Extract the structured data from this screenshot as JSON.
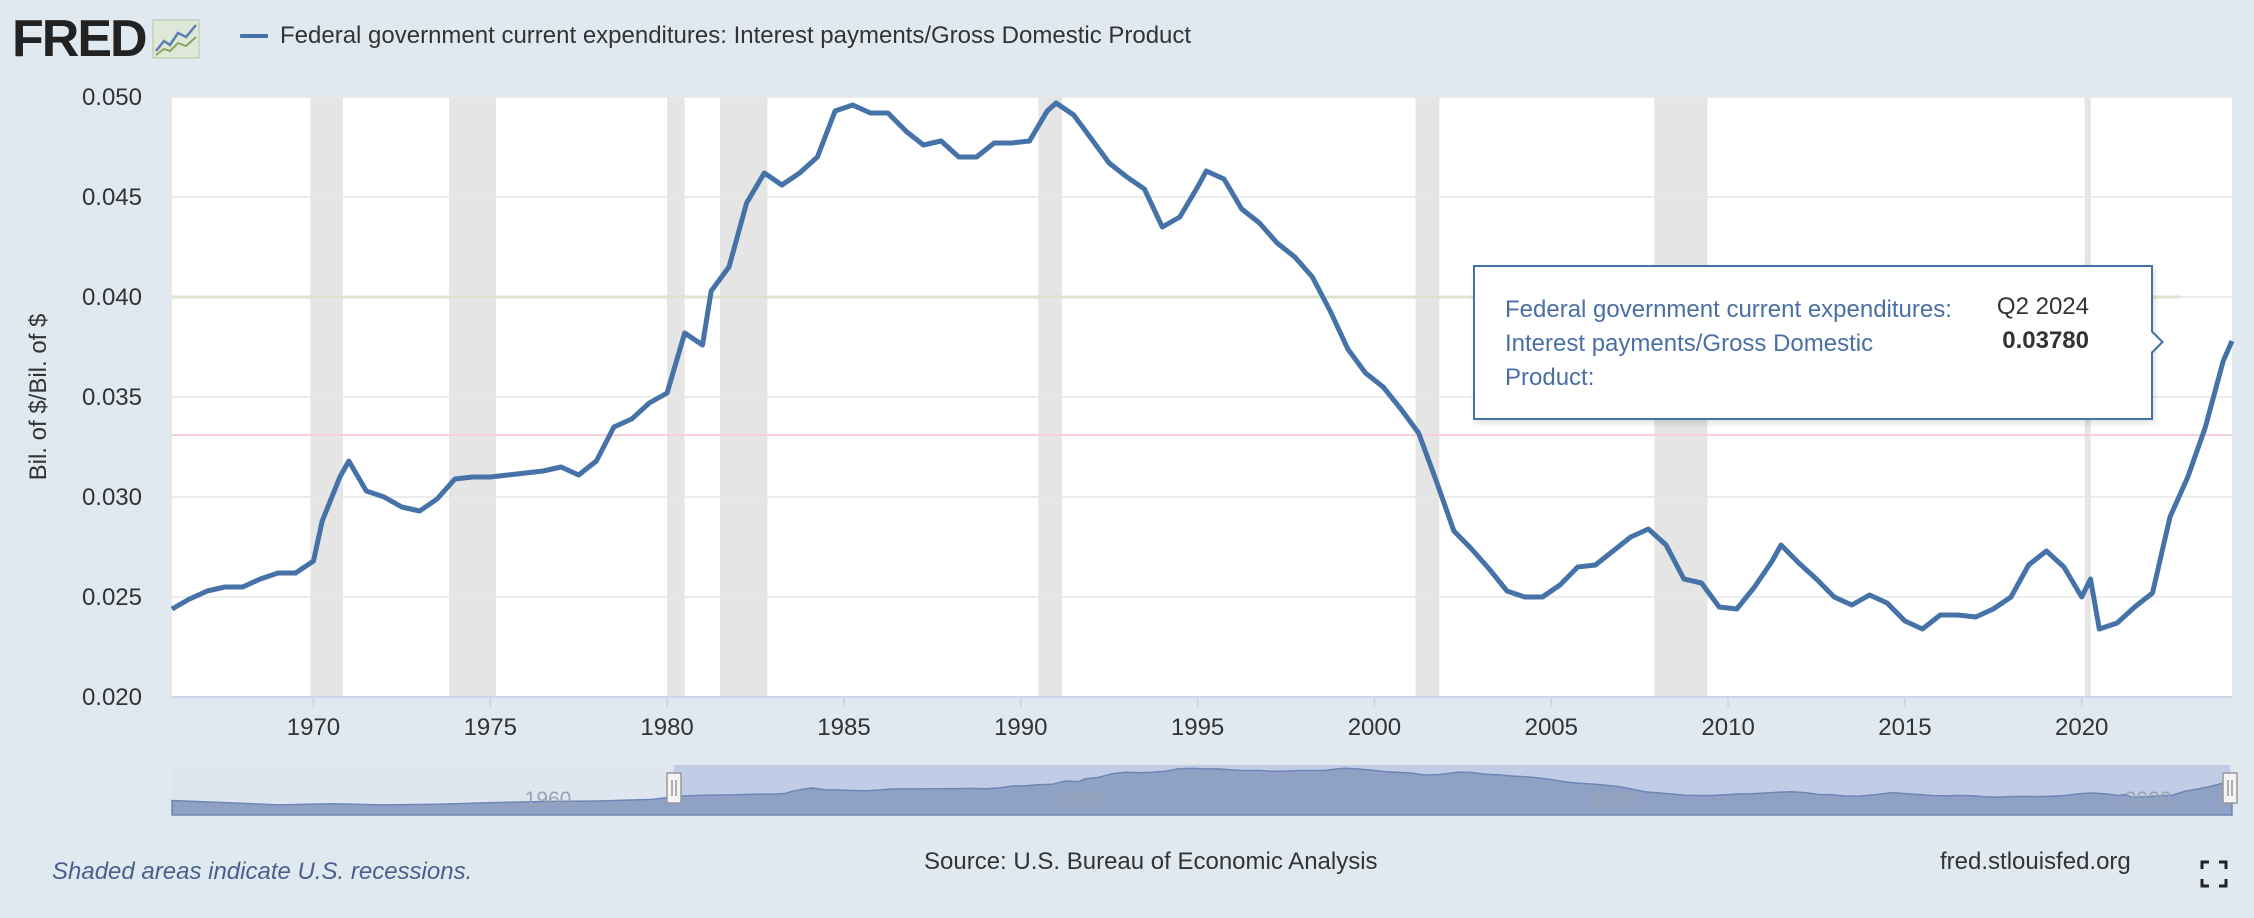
{
  "header": {
    "logo_text": "FRED",
    "logo_icon": "fred-graph-icon",
    "series_title": "Federal government current expenditures: Interest payments/Gross Domestic Product"
  },
  "tooltip": {
    "series_name": "Federal government current expenditures: Interest payments/Gross Domestic Product:",
    "date": "Q2 2024",
    "value": "0.03780"
  },
  "footer": {
    "recession_note": "Shaded areas indicate U.S. recessions.",
    "source": "Source: U.S. Bureau of Economic Analysis",
    "site": "fred.stlouisfed.org",
    "fullscreen_icon": "fullscreen-icon"
  },
  "colors": {
    "series": "#4572a7",
    "navigator_fill": "#8fa2c6",
    "navigator_window": "#c1cde6",
    "recession": "#e5e5e5",
    "background": "#e1e9f0"
  },
  "chart_data": {
    "type": "line",
    "title": "",
    "xlabel": "",
    "ylabel": "Bil. of $/Bil. of $",
    "xlim": [
      "1966-01-01",
      "2024-04-01"
    ],
    "ylim": [
      0.02,
      0.05
    ],
    "y_ticks": [
      "0.020",
      "0.025",
      "0.030",
      "0.035",
      "0.040",
      "0.045",
      "0.050"
    ],
    "x_ticks": [
      "1970",
      "1975",
      "1980",
      "1985",
      "1990",
      "1995",
      "2000",
      "2005",
      "2010",
      "2015",
      "2020"
    ],
    "navigator_labels": [
      "1960",
      "1980",
      "2000",
      "2020"
    ],
    "grid": true,
    "legend": "top-left",
    "recessions": [
      [
        "1969-12-01",
        "1970-11-01"
      ],
      [
        "1973-11-01",
        "1975-03-01"
      ],
      [
        "1980-01-01",
        "1980-07-01"
      ],
      [
        "1981-07-01",
        "1982-11-01"
      ],
      [
        "1990-07-01",
        "1991-03-01"
      ],
      [
        "2001-03-01",
        "2001-11-01"
      ],
      [
        "2007-12-01",
        "2009-06-01"
      ],
      [
        "2020-02-01",
        "2020-04-01"
      ]
    ],
    "series": [
      {
        "values": [
          [
            "1966-01-01",
            0.0244
          ],
          [
            "1966-07-01",
            0.0249
          ],
          [
            "1967-01-01",
            0.0253
          ],
          [
            "1967-07-01",
            0.0255
          ],
          [
            "1968-01-01",
            0.0255
          ],
          [
            "1968-07-01",
            0.0259
          ],
          [
            "1969-01-01",
            0.0262
          ],
          [
            "1969-07-01",
            0.0262
          ],
          [
            "1970-01-01",
            0.0268
          ],
          [
            "1970-04-01",
            0.0288
          ],
          [
            "1970-10-01",
            0.031
          ],
          [
            "1971-01-01",
            0.0318
          ],
          [
            "1971-07-01",
            0.0303
          ],
          [
            "1972-01-01",
            0.03
          ],
          [
            "1972-07-01",
            0.0295
          ],
          [
            "1973-01-01",
            0.0293
          ],
          [
            "1973-07-01",
            0.0299
          ],
          [
            "1974-01-01",
            0.0309
          ],
          [
            "1974-07-01",
            0.031
          ],
          [
            "1975-01-01",
            0.031
          ],
          [
            "1975-07-01",
            0.0311
          ],
          [
            "1976-01-01",
            0.0312
          ],
          [
            "1976-07-01",
            0.0313
          ],
          [
            "1977-01-01",
            0.0315
          ],
          [
            "1977-07-01",
            0.0311
          ],
          [
            "1978-01-01",
            0.0318
          ],
          [
            "1978-07-01",
            0.0335
          ],
          [
            "1979-01-01",
            0.0339
          ],
          [
            "1979-07-01",
            0.0347
          ],
          [
            "1980-01-01",
            0.0352
          ],
          [
            "1980-07-01",
            0.0382
          ],
          [
            "1981-01-01",
            0.0376
          ],
          [
            "1981-04-01",
            0.0403
          ],
          [
            "1981-10-01",
            0.0415
          ],
          [
            "1982-04-01",
            0.0447
          ],
          [
            "1982-10-01",
            0.0462
          ],
          [
            "1983-04-01",
            0.0456
          ],
          [
            "1983-10-01",
            0.0462
          ],
          [
            "1984-04-01",
            0.047
          ],
          [
            "1984-10-01",
            0.0493
          ],
          [
            "1985-04-01",
            0.0496
          ],
          [
            "1985-10-01",
            0.0492
          ],
          [
            "1986-04-01",
            0.0492
          ],
          [
            "1986-10-01",
            0.0483
          ],
          [
            "1987-04-01",
            0.0476
          ],
          [
            "1987-10-01",
            0.0478
          ],
          [
            "1988-04-01",
            0.047
          ],
          [
            "1988-10-01",
            0.047
          ],
          [
            "1989-04-01",
            0.0477
          ],
          [
            "1989-10-01",
            0.0477
          ],
          [
            "1990-04-01",
            0.0478
          ],
          [
            "1990-10-01",
            0.0493
          ],
          [
            "1991-01-01",
            0.0497
          ],
          [
            "1991-07-01",
            0.0491
          ],
          [
            "1992-01-01",
            0.0479
          ],
          [
            "1992-07-01",
            0.0467
          ],
          [
            "1993-01-01",
            0.046
          ],
          [
            "1993-07-01",
            0.0454
          ],
          [
            "1994-01-01",
            0.0435
          ],
          [
            "1994-07-01",
            0.044
          ],
          [
            "1995-01-01",
            0.0455
          ],
          [
            "1995-04-01",
            0.0463
          ],
          [
            "1995-10-01",
            0.0459
          ],
          [
            "1996-04-01",
            0.0444
          ],
          [
            "1996-10-01",
            0.0437
          ],
          [
            "1997-04-01",
            0.0427
          ],
          [
            "1997-10-01",
            0.042
          ],
          [
            "1998-04-01",
            0.041
          ],
          [
            "1998-10-01",
            0.0393
          ],
          [
            "1999-04-01",
            0.0374
          ],
          [
            "1999-10-01",
            0.0362
          ],
          [
            "2000-04-01",
            0.0355
          ],
          [
            "2000-10-01",
            0.0344
          ],
          [
            "2001-04-01",
            0.0332
          ],
          [
            "2001-10-01",
            0.0308
          ],
          [
            "2002-04-01",
            0.0283
          ],
          [
            "2002-10-01",
            0.0274
          ],
          [
            "2003-04-01",
            0.0264
          ],
          [
            "2003-10-01",
            0.0253
          ],
          [
            "2004-04-01",
            0.025
          ],
          [
            "2004-10-01",
            0.025
          ],
          [
            "2005-04-01",
            0.0256
          ],
          [
            "2005-10-01",
            0.0265
          ],
          [
            "2006-04-01",
            0.0266
          ],
          [
            "2006-10-01",
            0.0273
          ],
          [
            "2007-04-01",
            0.028
          ],
          [
            "2007-10-01",
            0.0284
          ],
          [
            "2008-04-01",
            0.0276
          ],
          [
            "2008-10-01",
            0.0259
          ],
          [
            "2009-04-01",
            0.0257
          ],
          [
            "2009-10-01",
            0.0245
          ],
          [
            "2010-04-01",
            0.0244
          ],
          [
            "2010-10-01",
            0.0255
          ],
          [
            "2011-04-01",
            0.0268
          ],
          [
            "2011-07-01",
            0.0276
          ],
          [
            "2012-01-01",
            0.0267
          ],
          [
            "2012-07-01",
            0.0259
          ],
          [
            "2013-01-01",
            0.025
          ],
          [
            "2013-07-01",
            0.0246
          ],
          [
            "2014-01-01",
            0.0251
          ],
          [
            "2014-07-01",
            0.0247
          ],
          [
            "2015-01-01",
            0.0238
          ],
          [
            "2015-07-01",
            0.0234
          ],
          [
            "2016-01-01",
            0.0241
          ],
          [
            "2016-07-01",
            0.0241
          ],
          [
            "2017-01-01",
            0.024
          ],
          [
            "2017-07-01",
            0.0244
          ],
          [
            "2018-01-01",
            0.025
          ],
          [
            "2018-07-01",
            0.0266
          ],
          [
            "2019-01-01",
            0.0273
          ],
          [
            "2019-07-01",
            0.0265
          ],
          [
            "2020-01-01",
            0.025
          ],
          [
            "2020-04-01",
            0.0259
          ],
          [
            "2020-07-01",
            0.0234
          ],
          [
            "2021-01-01",
            0.0237
          ],
          [
            "2021-07-01",
            0.0245
          ],
          [
            "2022-01-01",
            0.0252
          ],
          [
            "2022-07-01",
            0.029
          ],
          [
            "2023-01-01",
            0.031
          ],
          [
            "2023-07-01",
            0.0335
          ],
          [
            "2024-01-01",
            0.0368
          ],
          [
            "2024-04-01",
            0.0378
          ]
        ]
      }
    ]
  }
}
